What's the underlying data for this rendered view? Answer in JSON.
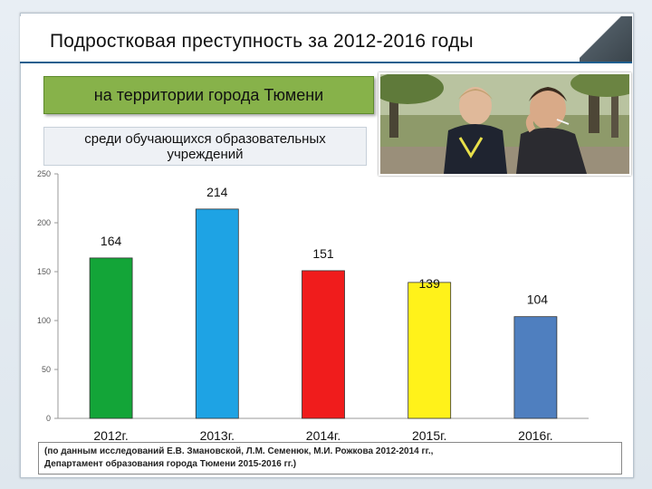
{
  "title": "Подростковая преступность за  2012-2016 годы",
  "subtitle1": "на территории  города Тюмени",
  "subtitle2": "среди обучающихся образовательных учреждений",
  "footnote_line1": "(по данным исследований Е.В. Змановской, Л.М. Семенюк, М.И. Рожкова 2012-2014 гг.,",
  "footnote_line2": "Департамент образования города Тюмени 2015-2016 гг.)",
  "photo": {
    "icon": "photo-two-boys-smoking"
  },
  "chart_data": {
    "type": "bar",
    "categories": [
      "2012г.",
      "2013г.",
      "2014г.",
      "2015г.",
      "2016г."
    ],
    "values": [
      164,
      214,
      151,
      139,
      104
    ],
    "colors": [
      "#13a538",
      "#1ea3e4",
      "#f01c1c",
      "#fff21a",
      "#4f7fbf"
    ],
    "ylim": [
      0,
      250
    ],
    "yticks": [
      0,
      50,
      100,
      150,
      200,
      250
    ],
    "grid": false,
    "legend": "none"
  }
}
